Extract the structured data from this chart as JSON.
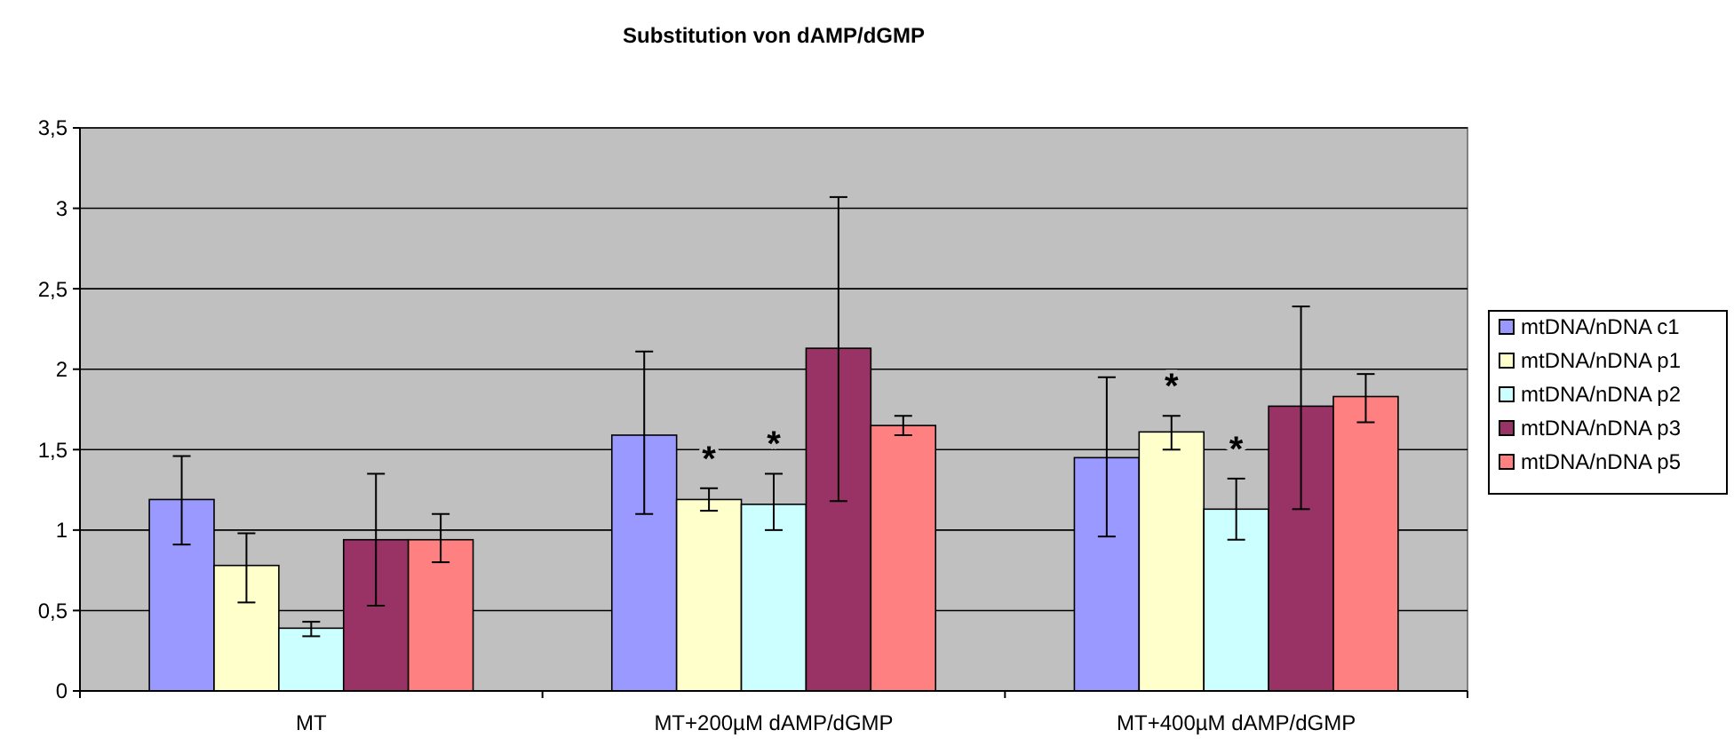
{
  "chart_data": {
    "type": "bar",
    "title": "Substitution von dAMP/dGMP",
    "categories": [
      "MT",
      "MT+200µM dAMP/dGMP",
      "MT+400µM dAMP/dGMP"
    ],
    "series": [
      {
        "name": "mtDNA/nDNA c1",
        "color": "#9999ff",
        "values": [
          1.19,
          1.59,
          1.45
        ],
        "errors": [
          [
            0.91,
            1.46
          ],
          [
            1.1,
            2.11
          ],
          [
            0.96,
            1.95
          ]
        ]
      },
      {
        "name": "mtDNA/nDNA p1",
        "color": "#ffffcc",
        "values": [
          0.78,
          1.19,
          1.61
        ],
        "errors": [
          [
            0.55,
            0.98
          ],
          [
            1.12,
            1.26
          ],
          [
            1.5,
            1.71
          ]
        ],
        "value_labels": [
          null,
          "*",
          "*"
        ]
      },
      {
        "name": "mtDNA/nDNA p2",
        "color": "#ccffff",
        "values": [
          0.39,
          1.16,
          1.13
        ],
        "errors": [
          [
            0.34,
            0.43
          ],
          [
            1.0,
            1.35
          ],
          [
            0.94,
            1.32
          ]
        ],
        "value_labels": [
          null,
          "*",
          "*"
        ]
      },
      {
        "name": "mtDNA/nDNA p3",
        "color": "#993366",
        "values": [
          0.94,
          2.13,
          1.77
        ],
        "errors": [
          [
            0.53,
            1.35
          ],
          [
            1.18,
            3.07
          ],
          [
            1.13,
            2.39
          ]
        ]
      },
      {
        "name": "mtDNA/nDNA p5",
        "color": "#ff8080",
        "values": [
          0.94,
          1.65,
          1.83
        ],
        "errors": [
          [
            0.8,
            1.1
          ],
          [
            1.59,
            1.71
          ],
          [
            1.67,
            1.97
          ]
        ]
      }
    ],
    "ylim": [
      0,
      3.5
    ],
    "yticks": [
      {
        "value": 0,
        "label": "0"
      },
      {
        "value": 0.5,
        "label": "0,5"
      },
      {
        "value": 1,
        "label": "1"
      },
      {
        "value": 1.5,
        "label": "1,5"
      },
      {
        "value": 2,
        "label": "2"
      },
      {
        "value": 2.5,
        "label": "2,5"
      },
      {
        "value": 3,
        "label": "3"
      },
      {
        "value": 3.5,
        "label": "3,5"
      }
    ],
    "grid": "y",
    "legend": "right"
  }
}
